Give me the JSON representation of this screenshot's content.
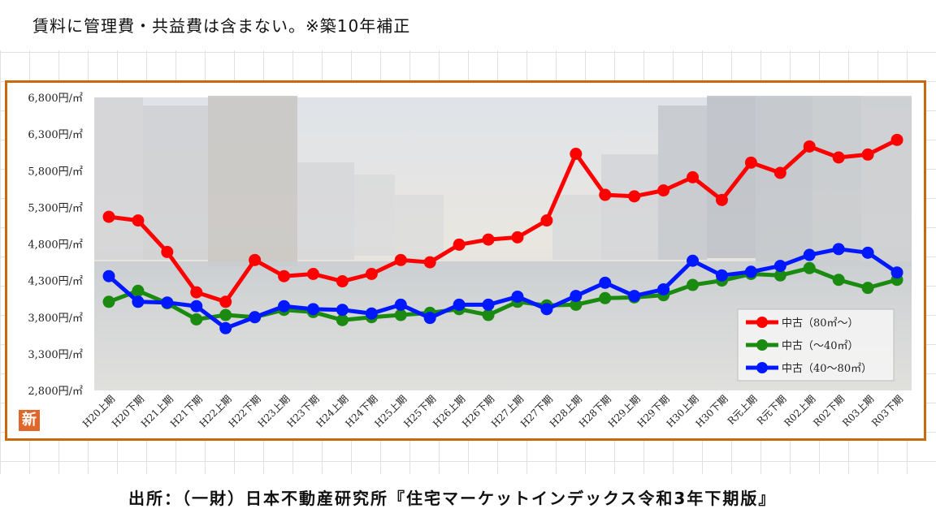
{
  "note": "賃料に管理費・共益費は含まない。※築10年補正",
  "source": "出所：（一財）日本不動産研究所『住宅マーケットインデックス令和3年下期版』",
  "badge": "新",
  "colors": {
    "frame": "#c8690e",
    "s80plus": "#ff0000",
    "s40minus": "#1a8a10",
    "s40to80": "#0018ff",
    "badge": "#e0662a"
  },
  "chart_data": {
    "type": "line",
    "title": "",
    "xlabel": "",
    "ylabel": "",
    "ylim": [
      2800,
      6800
    ],
    "grid": false,
    "legend_position": "bottom-right",
    "y_ticks": [
      2800,
      3300,
      3800,
      4300,
      4800,
      5300,
      5800,
      6300,
      6800
    ],
    "y_tick_labels": [
      "2,800円/㎡",
      "3,300円/㎡",
      "3,800円/㎡",
      "4,300円/㎡",
      "4,800円/㎡",
      "5,300円/㎡",
      "5,800円/㎡",
      "6,300円/㎡",
      "6,800円/㎡"
    ],
    "categories": [
      "H20上期",
      "H20下期",
      "H21上期",
      "H21下期",
      "H22上期",
      "H22下期",
      "H23上期",
      "H23下期",
      "H24上期",
      "H24下期",
      "H25上期",
      "H25下期",
      "H26上期",
      "H26下期",
      "H27上期",
      "H27下期",
      "H28上期",
      "H28下期",
      "H29上期",
      "H29下期",
      "H30上期",
      "H30下期",
      "R元上期",
      "R元下期",
      "R02上期",
      "R02下期",
      "R03上期",
      "R03下期"
    ],
    "series": [
      {
        "name": "中古（80㎡～）",
        "color": "#ff0000",
        "values": [
          5170,
          5120,
          4690,
          4140,
          4010,
          4580,
          4360,
          4390,
          4290,
          4390,
          4580,
          4550,
          4790,
          4860,
          4890,
          5120,
          6030,
          5470,
          5450,
          5530,
          5710,
          5400,
          5910,
          5770,
          6130,
          5980,
          6020,
          6220
        ]
      },
      {
        "name": "中古（～40㎡）",
        "color": "#1a8a10",
        "values": [
          4010,
          4160,
          3990,
          3770,
          3830,
          3800,
          3900,
          3870,
          3760,
          3800,
          3830,
          3860,
          3910,
          3830,
          4010,
          3960,
          3970,
          4060,
          4070,
          4100,
          4240,
          4300,
          4390,
          4370,
          4470,
          4310,
          4200,
          4310
        ]
      },
      {
        "name": "中古（40～80㎡）",
        "color": "#0018ff",
        "values": [
          4360,
          4010,
          4000,
          3950,
          3650,
          3800,
          3950,
          3910,
          3900,
          3850,
          3970,
          3790,
          3970,
          3970,
          4080,
          3910,
          4090,
          4270,
          4090,
          4180,
          4570,
          4370,
          4420,
          4500,
          4650,
          4730,
          4680,
          4410
        ]
      }
    ]
  }
}
